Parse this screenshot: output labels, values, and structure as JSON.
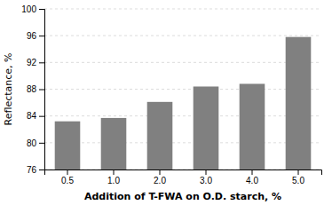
{
  "chart_data": {
    "type": "bar",
    "categories": [
      "0.5",
      "1.0",
      "2.0",
      "3.0",
      "4.0",
      "5.0"
    ],
    "values": [
      83.2,
      83.7,
      86.1,
      88.4,
      88.8,
      95.8
    ],
    "color": "#808080",
    "xlabel": "Addition of T-FWA on O.D. starch, %",
    "ylabel": "Reflectance, %",
    "ylim": [
      76,
      100
    ],
    "yticks": [
      76,
      80,
      84,
      88,
      92,
      96,
      100
    ],
    "grid": true
  }
}
